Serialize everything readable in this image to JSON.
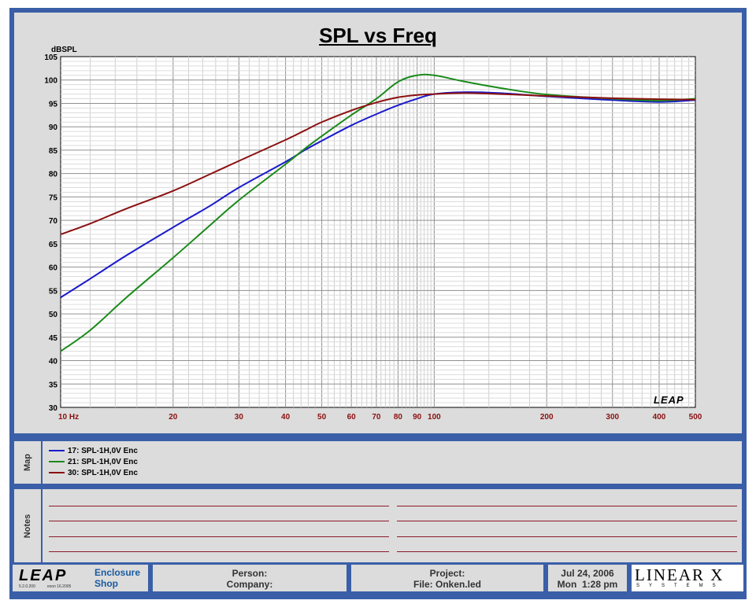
{
  "chart": {
    "title": "SPL vs Freq"
  },
  "chart_data": {
    "type": "line",
    "title": "SPL vs Freq",
    "xlabel": "",
    "ylabel": "dBSPL",
    "x_scale": "log",
    "xlim": [
      10,
      500
    ],
    "ylim": [
      30,
      105
    ],
    "grid": true,
    "x_tick_labels": [
      "10 Hz",
      "20",
      "30",
      "40",
      "50",
      "60",
      "70",
      "80",
      "90",
      "100",
      "200",
      "300",
      "400",
      "500"
    ],
    "y_tick_labels": [
      "30",
      "35",
      "40",
      "45",
      "50",
      "55",
      "60",
      "65",
      "70",
      "75",
      "80",
      "85",
      "90",
      "95",
      "100",
      "105"
    ],
    "x": [
      10,
      12,
      15,
      20,
      25,
      30,
      40,
      45,
      50,
      60,
      70,
      80,
      90,
      100,
      120,
      150,
      200,
      300,
      400,
      500
    ],
    "series": [
      {
        "name": "17: SPL-1H,0V Enc",
        "color": "#1a1acc",
        "values": [
          53.5,
          57.5,
          62.5,
          68.5,
          73,
          77,
          82.5,
          85,
          87,
          90.3,
          92.7,
          94.6,
          96,
          97,
          97.4,
          97.2,
          96.5,
          95.7,
          95.3,
          95.7
        ]
      },
      {
        "name": "21: SPL-1H,0V Enc",
        "color": "#1a8a1a",
        "values": [
          42,
          46.5,
          53.5,
          62,
          68.8,
          74.3,
          82,
          85.3,
          88,
          92.5,
          96,
          99.6,
          101,
          101,
          99.7,
          98.3,
          96.9,
          96,
          95.6,
          96
        ]
      },
      {
        "name": "30: SPL-1H,0V Enc",
        "color": "#8b1010",
        "values": [
          67,
          69.3,
          72.5,
          76.3,
          79.8,
          82.7,
          87.2,
          89.2,
          91,
          93.5,
          95.2,
          96.3,
          96.8,
          97,
          97.2,
          97,
          96.6,
          96.1,
          95.9,
          95.8
        ]
      }
    ]
  },
  "logos": {
    "leap_watermark": "LEAP",
    "leap_brand": "LEAP",
    "linearx_brand": "LINEAR X",
    "linearx_sub": "SYSTEMS"
  },
  "map": {
    "label": "Map"
  },
  "notes": {
    "label": "Notes"
  },
  "footer": {
    "product_line1": "Enclosure",
    "product_line2": "Shop",
    "version_left": "5.2.0.200",
    "version_right": "exon 16.2005",
    "person_label": "Person:",
    "company_label": "Company:",
    "project_label": "Project:",
    "file_label": "File: Onken.led",
    "date": "Jul 24, 2006",
    "time": "Mon  1:28 pm"
  }
}
